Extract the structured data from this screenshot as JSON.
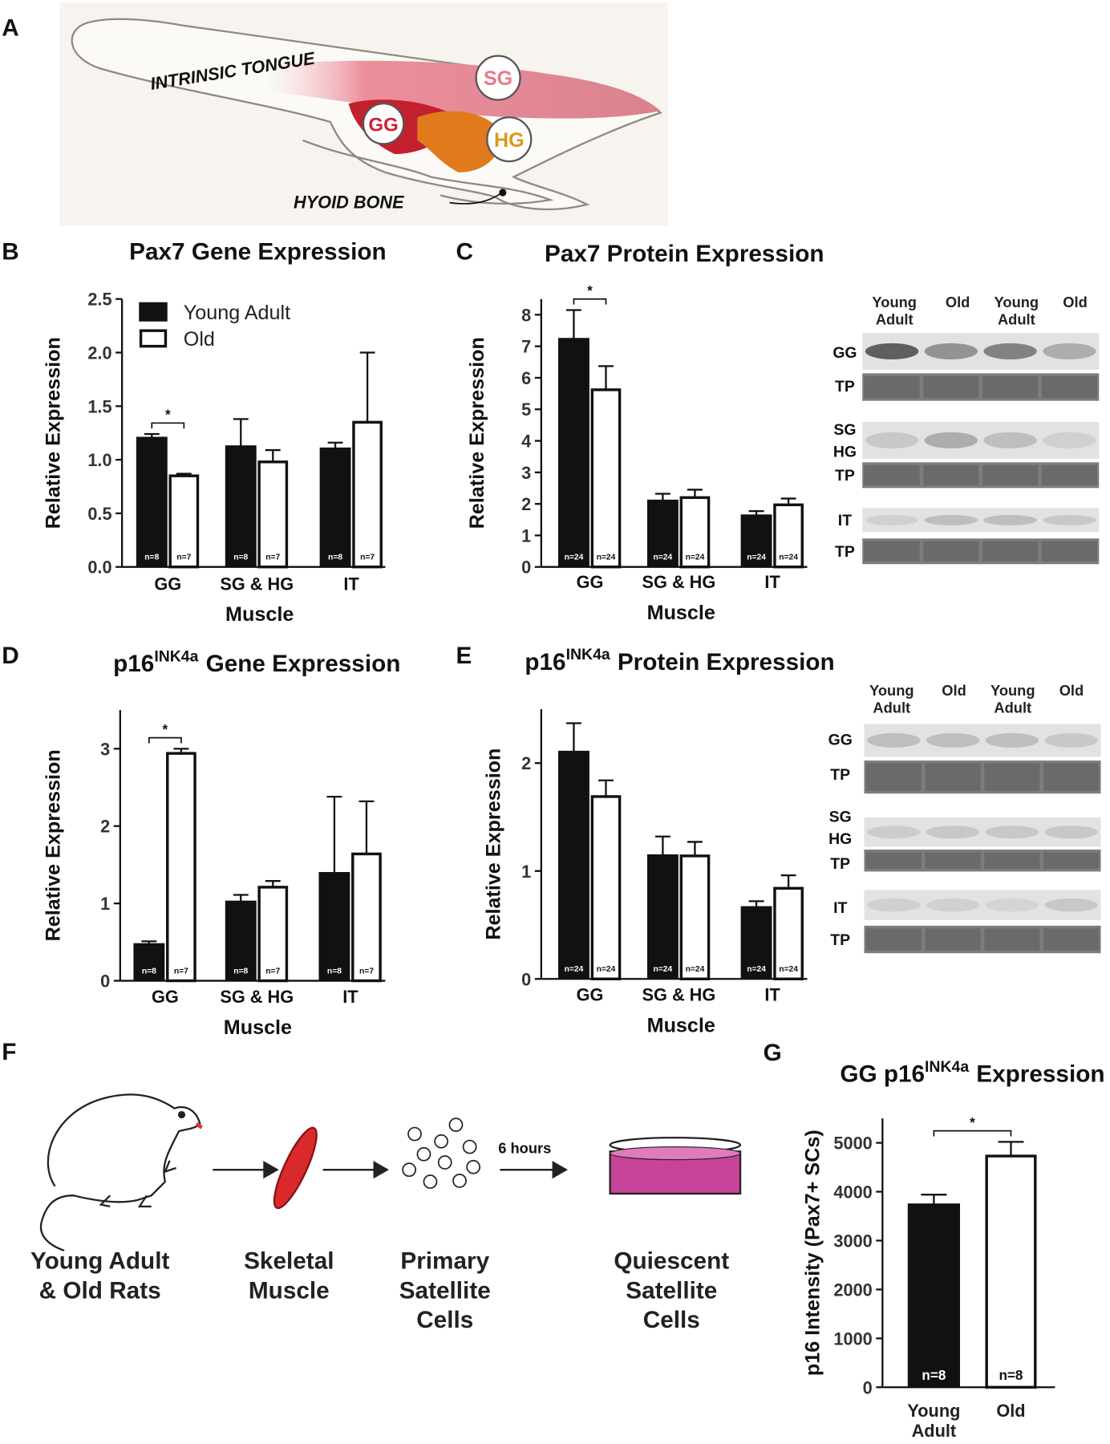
{
  "panel_a": {
    "label": "A",
    "annotations": [
      "INTRINSIC TONGUE",
      "HYOID BONE"
    ],
    "muscles": [
      "SG",
      "GG",
      "HG"
    ]
  },
  "panel_f": {
    "label": "F",
    "steps": [
      "Young Adult\n& Old Rats",
      "Skeletal\nMuscle",
      "Primary\nSatellite\nCells",
      "Quiescent\nSatellite\nCells"
    ],
    "arrow_label": "6 hours"
  },
  "blots": [
    {
      "lanes": [
        "Young\nAdult",
        "Old",
        "Young\nAdult",
        "Old"
      ],
      "rows": [
        "GG",
        "TP",
        "SG",
        "HG",
        "TP",
        "IT",
        "TP"
      ]
    },
    {
      "lanes": [
        "Young\nAdult",
        "Old",
        "Young\nAdult",
        "Old"
      ],
      "rows": [
        "GG",
        "TP",
        "SG",
        "HG",
        "TP",
        "IT",
        "TP"
      ]
    }
  ],
  "chart_data": [
    {
      "type": "bar",
      "label": "B",
      "title": "Pax7 Gene Expression",
      "x_label": "Muscle",
      "y_label": "Relative Expression",
      "categories": [
        "GG",
        "SG & HG",
        "IT"
      ],
      "ylim": [
        0,
        2.5
      ],
      "yticks": [
        {
          "value": 0,
          "label": "0.0"
        },
        0.5,
        {
          "value": 1,
          "label": "1.0"
        },
        1.5,
        {
          "value": 2,
          "label": "2.0"
        },
        2.5
      ],
      "legend": "upper left",
      "significance": "*",
      "series": [
        {
          "name": "Young Adult",
          "color": "#111111",
          "values": [
            1.21,
            1.13,
            1.11
          ],
          "errors": [
            0.03,
            0.25,
            0.05
          ],
          "n_labels": [
            "n=8",
            "n=8",
            "n=8"
          ]
        },
        {
          "name": "Old",
          "color": "#ffffff",
          "values": [
            0.85,
            0.98,
            1.35
          ],
          "errors": [
            0.02,
            0.11,
            0.65
          ],
          "n_labels": [
            "n=7",
            "n=7",
            "n=7"
          ]
        }
      ]
    },
    {
      "type": "bar",
      "label": "C",
      "title": "Pax7 Protein Expression",
      "x_label": "Muscle",
      "y_label": "Relative Expression",
      "categories": [
        "GG",
        "SG & HG",
        "IT"
      ],
      "ylim": [
        0,
        8.5
      ],
      "yticks": [
        0,
        1,
        2,
        3,
        4,
        5,
        6,
        7,
        8
      ],
      "significance": "*",
      "series": [
        {
          "color": "#111111",
          "values": [
            7.25,
            2.12,
            1.65
          ],
          "errors": [
            0.9,
            0.2,
            0.12
          ],
          "n_labels": [
            "n=24",
            "n=24",
            "n=24"
          ]
        },
        {
          "color": "#ffffff",
          "values": [
            5.62,
            2.2,
            1.97
          ],
          "errors": [
            0.75,
            0.25,
            0.2
          ],
          "n_labels": [
            "n=24",
            "n=24",
            "n=24"
          ]
        }
      ]
    },
    {
      "type": "bar",
      "label": "D",
      "title": "p16",
      "title_sup": "INK4a",
      "title_rest": "Gene Expression",
      "x_label": "Muscle",
      "y_label": "Relative Expression",
      "categories": [
        "GG",
        "SG & HG",
        "IT"
      ],
      "ylim": [
        0,
        3.5
      ],
      "yticks": [
        0,
        1,
        2,
        3
      ],
      "significance": "*",
      "series": [
        {
          "color": "#111111",
          "values": [
            0.48,
            1.03,
            1.4
          ],
          "errors": [
            0.03,
            0.08,
            0.98
          ],
          "n_labels": [
            "n=8",
            "n=8",
            "n=8"
          ]
        },
        {
          "color": "#ffffff",
          "values": [
            2.94,
            1.21,
            1.64
          ],
          "errors": [
            0.06,
            0.08,
            0.68
          ],
          "n_labels": [
            "n=7",
            "n=7",
            "n=7"
          ]
        }
      ]
    },
    {
      "type": "bar",
      "label": "E",
      "title": "p16",
      "title_sup": "INK4a",
      "title_rest": "Protein Expression",
      "x_label": "Muscle",
      "y_label": "Relative Expression",
      "categories": [
        "GG",
        "SG & HG",
        "IT"
      ],
      "ylim": [
        0,
        2.5
      ],
      "yticks": [
        0,
        1,
        2
      ],
      "series": [
        {
          "color": "#111111",
          "values": [
            2.11,
            1.15,
            0.67
          ],
          "errors": [
            0.26,
            0.17,
            0.05
          ],
          "n_labels": [
            "n=24",
            "n=24",
            "n=24"
          ]
        },
        {
          "color": "#ffffff",
          "values": [
            1.69,
            1.14,
            0.84
          ],
          "errors": [
            0.15,
            0.13,
            0.12
          ],
          "n_labels": [
            "n=24",
            "n=24",
            "n=24"
          ]
        }
      ]
    },
    {
      "type": "bar",
      "label": "G",
      "title": "GG p16",
      "title_sup": "INK4a",
      "title_rest": "Expression",
      "y_label": "p16 Intensity (Pax7+ SCs)",
      "categories": [
        "Young\nAdult",
        "Old"
      ],
      "ylim": [
        0,
        5500
      ],
      "yticks": [
        0,
        1000,
        2000,
        3000,
        4000,
        5000
      ],
      "significance": "*",
      "values": [
        3750,
        4730
      ],
      "errors": [
        190,
        290
      ],
      "n_labels": [
        "n=8",
        "n=8"
      ],
      "colors": [
        "#111111",
        "#ffffff"
      ]
    }
  ]
}
